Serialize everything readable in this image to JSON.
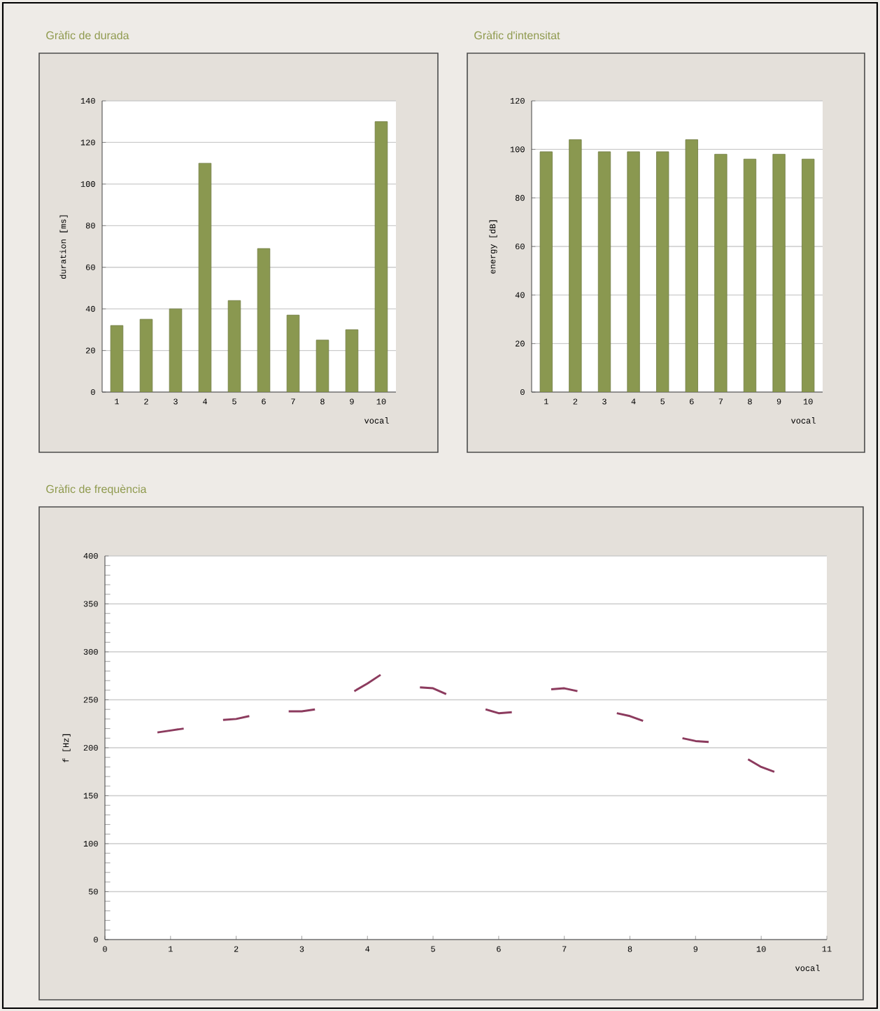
{
  "chart_data": [
    {
      "type": "bar",
      "title": "Gràfic de durada",
      "xlabel": "vocal",
      "ylabel": "duration [ms]",
      "categories": [
        "1",
        "2",
        "3",
        "4",
        "5",
        "6",
        "7",
        "8",
        "9",
        "10"
      ],
      "series": [
        {
          "color": "#8a9850",
          "values": [
            32,
            35,
            40,
            110,
            44,
            69,
            37,
            25,
            30,
            130
          ]
        }
      ],
      "ylim": [
        0,
        140
      ],
      "yticks": [
        0,
        20,
        40,
        60,
        80,
        100,
        120,
        140
      ],
      "grid": "y"
    },
    {
      "type": "bar",
      "title": "Gràfic d'intensitat",
      "xlabel": "vocal",
      "ylabel": "energy [dB]",
      "categories": [
        "1",
        "2",
        "3",
        "4",
        "5",
        "6",
        "7",
        "8",
        "9",
        "10"
      ],
      "series": [
        {
          "color": "#8a9850",
          "values": [
            99,
            104,
            99,
            99,
            99,
            104,
            98,
            96,
            98,
            96
          ]
        }
      ],
      "ylim": [
        0,
        120
      ],
      "yticks": [
        0,
        20,
        40,
        60,
        80,
        100,
        120
      ],
      "grid": "y"
    },
    {
      "type": "line",
      "title": "Gràfic de frequència",
      "xlabel": "vocal",
      "ylabel": "f [Hz]",
      "marker": "none",
      "series": [
        {
          "color": "#8c3b5e",
          "x": [
            0.8,
            1.0,
            1.2,
            1.5,
            1.8,
            2.0,
            2.2,
            2.5,
            2.8,
            3.0,
            3.2,
            3.5,
            3.8,
            4.0,
            4.2,
            4.5,
            4.8,
            5.0,
            5.2,
            5.5,
            5.8,
            6.0,
            6.2,
            6.5,
            6.8,
            7.0,
            7.2,
            7.5,
            7.8,
            8.0,
            8.2,
            8.5,
            8.8,
            9.0,
            9.2,
            9.5,
            9.8,
            10.0,
            10.2
          ],
          "values": [
            216,
            218,
            220,
            null,
            229,
            230,
            233,
            null,
            238,
            238,
            240,
            null,
            259,
            267,
            276,
            null,
            263,
            262,
            256,
            null,
            240,
            236,
            237,
            null,
            261,
            262,
            259,
            null,
            236,
            233,
            228,
            null,
            210,
            207,
            206,
            null,
            188,
            180,
            175
          ]
        }
      ],
      "xlim": [
        0,
        11
      ],
      "xticks": [
        0,
        1,
        2,
        3,
        4,
        5,
        6,
        7,
        8,
        9,
        10,
        11
      ],
      "ylim": [
        0,
        400
      ],
      "yticks": [
        0,
        50,
        100,
        150,
        200,
        250,
        300,
        350,
        400
      ],
      "grid": "y"
    }
  ]
}
